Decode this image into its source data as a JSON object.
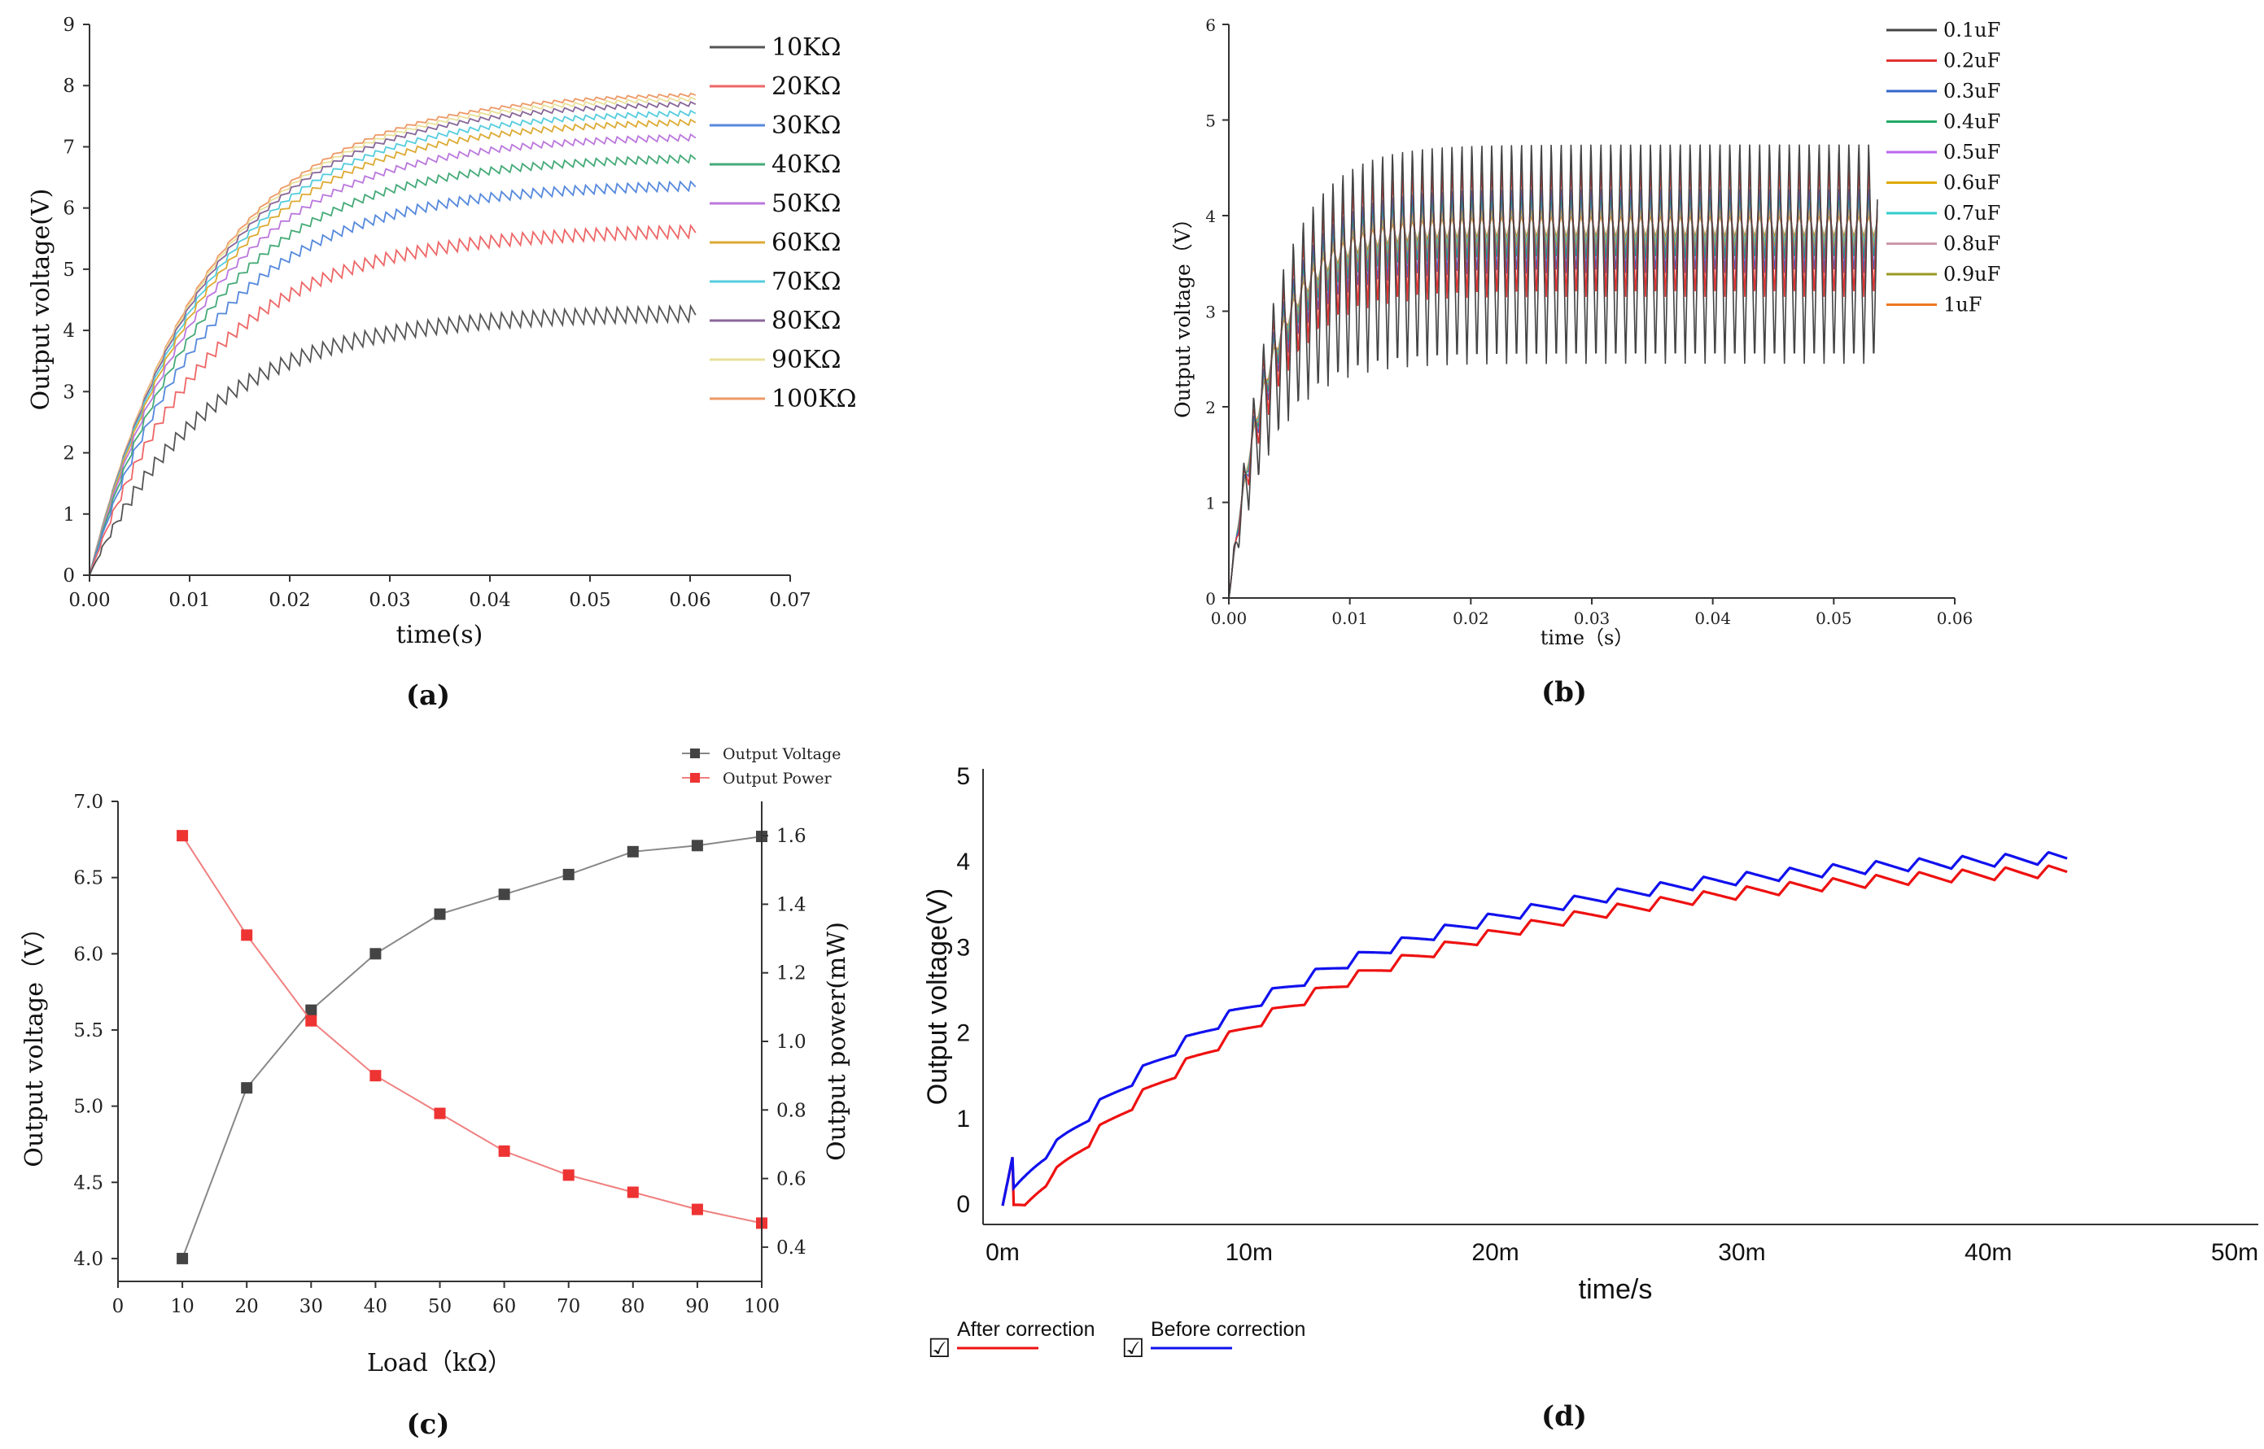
{
  "chart_data": [
    {
      "id": "a",
      "type": "line",
      "caption": "(a)",
      "xlabel": "time(s)",
      "ylabel": "Output voltage(V)",
      "xlim": [
        0,
        0.07
      ],
      "ylim": [
        0,
        9
      ],
      "xticks": [
        "0.00",
        "0.01",
        "0.02",
        "0.03",
        "0.04",
        "0.05",
        "0.06",
        "0.07"
      ],
      "yticks": [
        "0",
        "1",
        "2",
        "3",
        "4",
        "5",
        "6",
        "7",
        "8",
        "9"
      ],
      "series": [
        {
          "name": "10KΩ",
          "color": "#555555",
          "steady_state": 4.3,
          "ripple": 0.25
        },
        {
          "name": "20KΩ",
          "color": "#ee6666",
          "steady_state": 5.65,
          "ripple": 0.2
        },
        {
          "name": "30KΩ",
          "color": "#5588dd",
          "steady_state": 6.4,
          "ripple": 0.15
        },
        {
          "name": "40KΩ",
          "color": "#44aa77",
          "steady_state": 6.85,
          "ripple": 0.12
        },
        {
          "name": "50KΩ",
          "color": "#bb77dd",
          "steady_state": 7.2,
          "ripple": 0.1
        },
        {
          "name": "60KΩ",
          "color": "#ddaa33",
          "steady_state": 7.45,
          "ripple": 0.09
        },
        {
          "name": "70KΩ",
          "color": "#55ccdd",
          "steady_state": 7.6,
          "ripple": 0.08
        },
        {
          "name": "80KΩ",
          "color": "#886699",
          "steady_state": 7.75,
          "ripple": 0.07
        },
        {
          "name": "90KΩ",
          "color": "#e8e099",
          "steady_state": 7.83,
          "ripple": 0.06
        },
        {
          "name": "100KΩ",
          "color": "#ee9966",
          "steady_state": 7.9,
          "ripple": 0.05
        }
      ]
    },
    {
      "id": "b",
      "type": "line",
      "caption": "(b)",
      "xlabel": "time（s）",
      "ylabel": "Output voltage（V）",
      "xlim": [
        0,
        0.06
      ],
      "ylim": [
        0,
        6
      ],
      "xticks": [
        "0.00",
        "0.01",
        "0.02",
        "0.03",
        "0.04",
        "0.05",
        "0.06"
      ],
      "yticks": [
        "0",
        "1",
        "2",
        "3",
        "4",
        "5",
        "6"
      ],
      "series": [
        {
          "name": "0.1uF",
          "color": "#444444",
          "min": 2.45,
          "max": 4.8
        },
        {
          "name": "0.2uF",
          "color": "#e03333",
          "min": 3.15,
          "max": 4.5
        },
        {
          "name": "0.3uF",
          "color": "#3366cc",
          "min": 3.4,
          "max": 4.3
        },
        {
          "name": "0.4uF",
          "color": "#22aa66",
          "min": 3.55,
          "max": 4.2
        },
        {
          "name": "0.5uF",
          "color": "#bb66ee",
          "min": 3.6,
          "max": 4.15
        },
        {
          "name": "0.6uF",
          "color": "#ddaa00",
          "min": 3.65,
          "max": 4.1
        },
        {
          "name": "0.7uF",
          "color": "#33cccc",
          "min": 3.7,
          "max": 4.08
        },
        {
          "name": "0.8uF",
          "color": "#cc99aa",
          "min": 3.72,
          "max": 4.05
        },
        {
          "name": "0.9uF",
          "color": "#999922",
          "min": 3.75,
          "max": 4.03
        },
        {
          "name": "1uF",
          "color": "#ee7722",
          "min": 3.78,
          "max": 4.0
        }
      ]
    },
    {
      "id": "c",
      "type": "line",
      "caption": "(c)",
      "xlabel": "Load（kΩ）",
      "ylabel": "Output voltage（V）",
      "ylabel_right": "Output power(mW)",
      "xlim": [
        0,
        100
      ],
      "ylim": [
        3.85,
        7.0
      ],
      "ylim_right": [
        0.3,
        1.7
      ],
      "xticks": [
        "0",
        "10",
        "20",
        "30",
        "40",
        "50",
        "60",
        "70",
        "80",
        "90",
        "100"
      ],
      "yticks": [
        "4.0",
        "4.5",
        "5.0",
        "5.5",
        "6.0",
        "6.5",
        "7.0"
      ],
      "yticks_right": [
        "0.4",
        "0.6",
        "0.8",
        "1.0",
        "1.2",
        "1.4",
        "1.6"
      ],
      "x": [
        10,
        20,
        30,
        40,
        50,
        60,
        70,
        80,
        90,
        100
      ],
      "series": [
        {
          "name": "Output Voltage",
          "color": "#444444",
          "axis": "left",
          "values": [
            4.0,
            5.12,
            5.63,
            6.0,
            6.26,
            6.39,
            6.52,
            6.67,
            6.71,
            6.77
          ]
        },
        {
          "name": "Output Power",
          "color": "#ee3333",
          "axis": "right",
          "values": [
            1.6,
            1.31,
            1.06,
            0.9,
            0.79,
            0.68,
            0.61,
            0.56,
            0.51,
            0.47
          ]
        }
      ]
    },
    {
      "id": "d",
      "type": "line",
      "caption": "(d)",
      "xlabel": "time/s",
      "ylabel": "Output voltage(V)",
      "xlim": [
        0,
        50
      ],
      "ylim": [
        0,
        5
      ],
      "xticks": [
        "0m",
        "10m",
        "20m",
        "30m",
        "40m",
        "50m"
      ],
      "yticks": [
        "0",
        "1",
        "2",
        "3",
        "4",
        "5"
      ],
      "series": [
        {
          "name": "After correction",
          "color": "#ee1111",
          "steady_state": 4.05
        },
        {
          "name": "Before correction",
          "color": "#1111ee",
          "steady_state": 4.15
        }
      ],
      "legend_check": "☑"
    }
  ]
}
